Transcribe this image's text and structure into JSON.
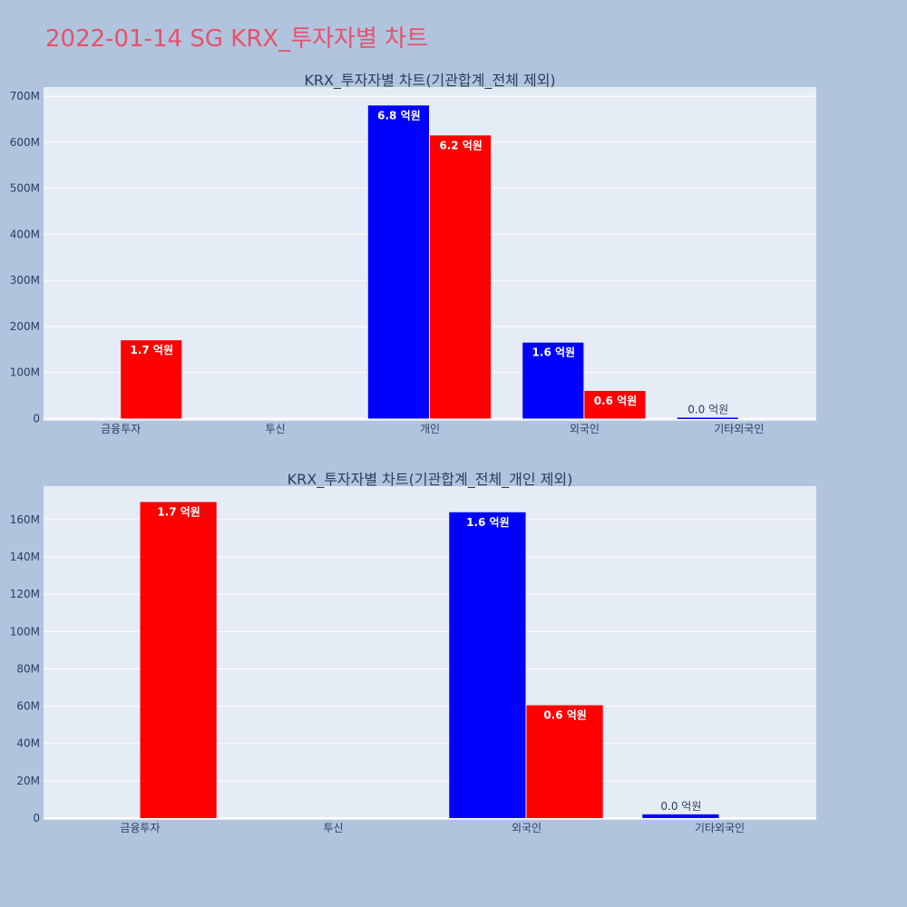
{
  "page": {
    "title": "2022-01-14 SG KRX_투자자별 차트"
  },
  "colors": {
    "background": "#b0c4de",
    "plot_background": "#e5ecf6",
    "title_color": "#e8506a",
    "series_blue": "#0000ff",
    "series_red": "#ff0000"
  },
  "chart_data": [
    {
      "type": "bar",
      "title": "KRX_투자자별 차트(기관합계_전체 제외)",
      "categories": [
        "금융투자",
        "투신",
        "개인",
        "외국인",
        "기타외국인"
      ],
      "series": [
        {
          "color": "#0000ff",
          "values": [
            0,
            0,
            680000000,
            165000000,
            2000000
          ],
          "labels": [
            "",
            "",
            "6.8 억원",
            "1.6 억원",
            "0.0 억원"
          ]
        },
        {
          "color": "#ff0000",
          "values": [
            170000000,
            0,
            615000000,
            60000000,
            0
          ],
          "labels": [
            "1.7 억원",
            "",
            "6.2 억원",
            "0.6 억원",
            ""
          ]
        }
      ],
      "ylim": [
        -5000000,
        720000000
      ],
      "yticks": [
        0,
        100000000,
        200000000,
        300000000,
        400000000,
        500000000,
        600000000,
        700000000
      ],
      "ytick_labels": [
        "0",
        "100M",
        "200M",
        "300M",
        "400M",
        "500M",
        "600M",
        "700M"
      ],
      "grid": true
    },
    {
      "type": "bar",
      "title": "KRX_투자자별 차트(기관합계_전체_개인 제외)",
      "categories": [
        "금융투자",
        "투신",
        "외국인",
        "기타외국인"
      ],
      "series": [
        {
          "color": "#0000ff",
          "values": [
            0,
            0,
            164000000,
            2000000
          ],
          "labels": [
            "",
            "",
            "1.6 억원",
            "0.0 억원"
          ]
        },
        {
          "color": "#ff0000",
          "values": [
            169500000,
            0,
            60500000,
            0
          ],
          "labels": [
            "1.7 억원",
            "",
            "0.6 억원",
            ""
          ]
        }
      ],
      "ylim": [
        -1000000,
        178000000
      ],
      "yticks": [
        0,
        20000000,
        40000000,
        60000000,
        80000000,
        100000000,
        120000000,
        140000000,
        160000000
      ],
      "ytick_labels": [
        "0",
        "20M",
        "40M",
        "60M",
        "80M",
        "100M",
        "120M",
        "140M",
        "160M"
      ],
      "grid": true
    }
  ]
}
